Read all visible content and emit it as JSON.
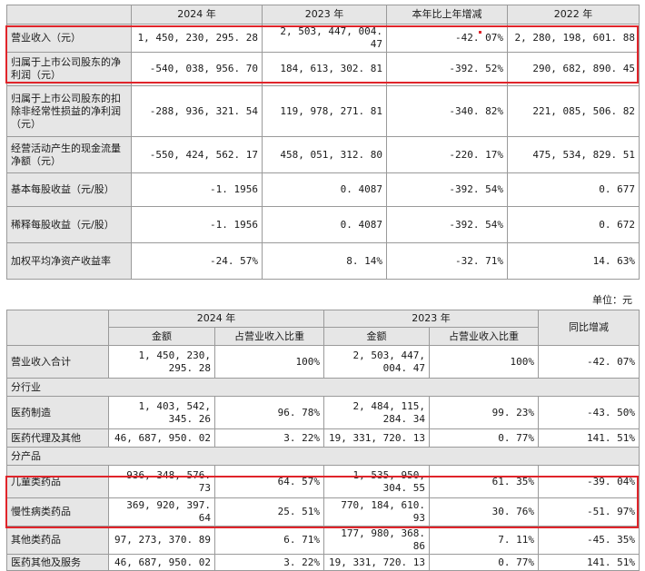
{
  "t1": {
    "headers": [
      "",
      "2024 年",
      "2023 年",
      "本年比上年增减",
      "2022 年"
    ],
    "rows": [
      {
        "label": "营业收入（元）",
        "v2024": "1, 450, 230, 295. 28",
        "v2023": "2, 503, 447, 004. 47",
        "change": "-42. 07%",
        "v2022": "2, 280, 198, 601. 88"
      },
      {
        "label": "归属于上市公司股东的净利润（元）",
        "v2024": "-540, 038, 956. 70",
        "v2023": "184, 613, 302. 81",
        "change": "-392. 52%",
        "v2022": "290, 682, 890. 45"
      },
      {
        "label": "归属于上市公司股东的扣除非经常性损益的净利润（元）",
        "v2024": "-288, 936, 321. 54",
        "v2023": "119, 978, 271. 81",
        "change": "-340. 82%",
        "v2022": "221, 085, 506. 82"
      },
      {
        "label": "经营活动产生的现金流量净额（元）",
        "v2024": "-550, 424, 562. 17",
        "v2023": "458, 051, 312. 80",
        "change": "-220. 17%",
        "v2022": "475, 534, 829. 51"
      },
      {
        "label": "基本每股收益（元/股）",
        "v2024": "-1. 1956",
        "v2023": "0. 4087",
        "change": "-392. 54%",
        "v2022": "0. 677"
      },
      {
        "label": "稀释每股收益（元/股）",
        "v2024": "-1. 1956",
        "v2023": "0. 4087",
        "change": "-392. 54%",
        "v2022": "0. 672"
      },
      {
        "label": "加权平均净资产收益率",
        "v2024": "-24. 57%",
        "v2023": "8. 14%",
        "change": "-32. 71%",
        "v2022": "14. 63%"
      }
    ]
  },
  "unit_label": "单位：元",
  "t2": {
    "year2024": "2024 年",
    "year2023": "2023 年",
    "yoy": "同比增减",
    "amount": "金额",
    "ratio": "占营业收入比重",
    "total": {
      "label": "营业收入合计",
      "a24": "1, 450, 230, 295. 28",
      "r24": "100%",
      "a23": "2, 503, 447, 004. 47",
      "r23": "100%",
      "yoy": "-42. 07%"
    },
    "sec_industry": "分行业",
    "industry": [
      {
        "label": "医药制造",
        "a24": "1, 403, 542, 345. 26",
        "r24": "96. 78%",
        "a23": "2, 484, 115, 284. 34",
        "r23": "99. 23%",
        "yoy": "-43. 50%"
      },
      {
        "label": "医药代理及其他",
        "a24": "46, 687, 950. 02",
        "r24": "3. 22%",
        "a23": "19, 331, 720. 13",
        "r23": "0. 77%",
        "yoy": "141. 51%"
      }
    ],
    "sec_product": "分产品",
    "product": [
      {
        "label": "儿童类药品",
        "a24": "936, 348, 576. 73",
        "r24": "64. 57%",
        "a23": "1, 535, 950, 304. 55",
        "r23": "61. 35%",
        "yoy": "-39. 04%"
      },
      {
        "label": "慢性病类药品",
        "a24": "369, 920, 397. 64",
        "r24": "25. 51%",
        "a23": "770, 184, 610. 93",
        "r23": "30. 76%",
        "yoy": "-51. 97%"
      },
      {
        "label": "其他类药品",
        "a24": "97, 273, 370. 89",
        "r24": "6. 71%",
        "a23": "177, 980, 368. 86",
        "r23": "7. 11%",
        "yoy": "-45. 35%"
      },
      {
        "label": "医药其他及服务",
        "a24": "46, 687, 950. 02",
        "r24": "3. 22%",
        "a23": "19, 331, 720. 13",
        "r23": "0. 77%",
        "yoy": "141. 51%"
      }
    ]
  },
  "colors": {
    "highlight": "#e0242a",
    "header_bg": "#e6e6e6",
    "border": "#9a9a9a"
  }
}
